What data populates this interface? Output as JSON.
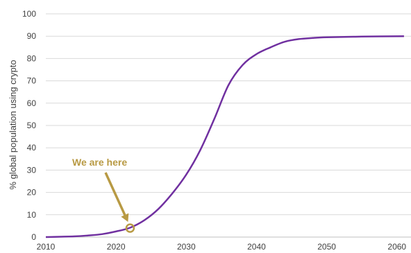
{
  "chart_data": {
    "type": "line",
    "title": "",
    "xlabel": "",
    "ylabel": "% global population using crypto",
    "xlim": [
      2010,
      2062
    ],
    "ylim": [
      0,
      100
    ],
    "x_ticks": [
      "2010",
      "2020",
      "2030",
      "2040",
      "2050",
      "2060"
    ],
    "y_ticks": [
      "0",
      "10",
      "20",
      "30",
      "40",
      "50",
      "60",
      "70",
      "80",
      "90",
      "100"
    ],
    "grid": true,
    "series": [
      {
        "x": [
          2010,
          2014,
          2016,
          2018,
          2020,
          2022,
          2024,
          2026,
          2028,
          2030,
          2032,
          2034,
          2036,
          2038,
          2040,
          2042,
          2044,
          2046,
          2048,
          2050,
          2055,
          2061
        ],
        "y": [
          0,
          0.3,
          0.7,
          1.3,
          2.5,
          4.2,
          7.5,
          12.5,
          19.5,
          28,
          39,
          53,
          68,
          77,
          82,
          85,
          87.5,
          88.7,
          89.2,
          89.5,
          89.8,
          90
        ],
        "color": "#7030A0"
      }
    ],
    "annotation": {
      "text": "We are here",
      "x": 2022,
      "y": 4,
      "color": "#B89A44"
    }
  }
}
